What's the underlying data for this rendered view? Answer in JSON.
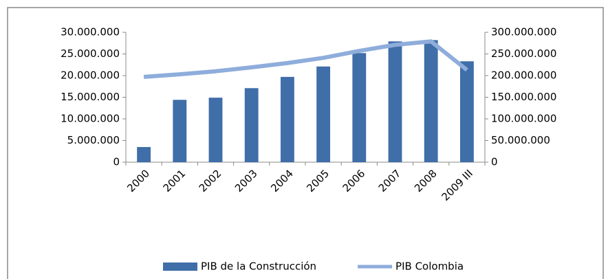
{
  "chart_data": {
    "type": "bar_line",
    "categories": [
      "2000",
      "2001",
      "2002",
      "2003",
      "2004",
      "2005",
      "2006",
      "2007",
      "2008",
      "2009 III"
    ],
    "series": [
      {
        "name": "PIB de la Construcción",
        "color": "#3f6ea8",
        "type": "bar",
        "axis": "y",
        "values": [
          3500000,
          14400000,
          14900000,
          17100000,
          19700000,
          22100000,
          25200000,
          27900000,
          28200000,
          23300000
        ]
      },
      {
        "name": "PIB Colombia",
        "color": "#8eaddb",
        "type": "line",
        "axis": "y2",
        "values": [
          197000000,
          203000000,
          210000000,
          219000000,
          229000000,
          241000000,
          257000000,
          271000000,
          279000000,
          213000000
        ]
      }
    ],
    "ylim": [
      0,
      30000000
    ],
    "yticks": [
      0,
      {
        "value": 5000000,
        "label": "5.000.000"
      },
      {
        "value": 10000000,
        "label": "10.000.000"
      },
      {
        "value": 15000000,
        "label": "15.000.000"
      },
      {
        "value": 20000000,
        "label": "20.000.000"
      },
      {
        "value": 25000000,
        "label": "25.000.000"
      },
      {
        "value": 30000000,
        "label": "30.000.000"
      }
    ],
    "y2lim": [
      0,
      300000000
    ],
    "y2ticks": [
      0,
      {
        "value": 50000000,
        "label": "50.000.000"
      },
      {
        "value": 100000000,
        "label": "100.000.000"
      },
      {
        "value": 150000000,
        "label": "150.000.000"
      },
      {
        "value": 200000000,
        "label": "200.000.000"
      },
      {
        "value": 250000000,
        "label": "250.000.000"
      },
      {
        "value": 300000000,
        "label": "300.000.000"
      }
    ],
    "legend": "bottom"
  }
}
